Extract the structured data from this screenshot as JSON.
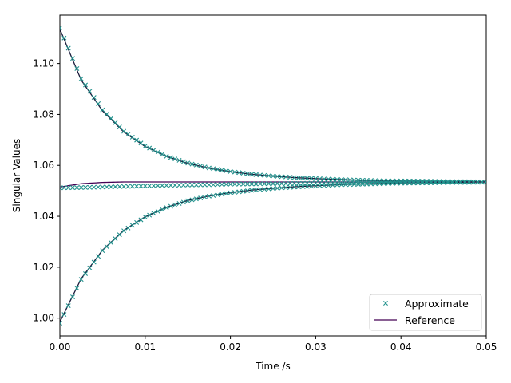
{
  "chart_data": {
    "type": "line",
    "title": "",
    "xlabel": "Time /s",
    "ylabel": "Singular Values",
    "xlim": [
      0.0,
      0.05
    ],
    "ylim": [
      0.993,
      1.119
    ],
    "xticks": [
      0.0,
      0.01,
      0.02,
      0.03,
      0.04,
      0.05
    ],
    "xtick_labels": [
      "0.00",
      "0.01",
      "0.02",
      "0.03",
      "0.04",
      "0.05"
    ],
    "yticks": [
      1.0,
      1.02,
      1.04,
      1.06,
      1.08,
      1.1
    ],
    "ytick_labels": [
      "1.00",
      "1.02",
      "1.04",
      "1.06",
      "1.08",
      "1.10"
    ],
    "grid": false,
    "legend": {
      "placement": "lower-right",
      "entries": [
        {
          "label": "Approximate",
          "marker": "x",
          "color": "#21918c"
        },
        {
          "label": "Reference",
          "marker": "line",
          "color": "#440154"
        }
      ]
    },
    "colors": {
      "approximate": "#21918c",
      "reference": "#440154",
      "reference_dark": "#1a1a3a"
    },
    "x": [
      0.0,
      0.0025,
      0.005,
      0.0075,
      0.01,
      0.0125,
      0.015,
      0.0175,
      0.02,
      0.0225,
      0.025,
      0.0275,
      0.03,
      0.0325,
      0.035,
      0.0375,
      0.04,
      0.0425,
      0.045,
      0.0475,
      0.05
    ],
    "series": [
      {
        "name": "Reference",
        "curve": "upper",
        "values": [
          1.1135,
          1.0935,
          1.0814,
          1.0731,
          1.0674,
          1.0635,
          1.0608,
          1.0589,
          1.0575,
          1.0565,
          1.0558,
          1.0552,
          1.0548,
          1.0545,
          1.0542,
          1.054,
          1.0539,
          1.0538,
          1.0537,
          1.0536,
          1.0535
        ]
      },
      {
        "name": "Reference",
        "curve": "middle",
        "values": [
          1.0515,
          1.0528,
          1.0533,
          1.0535,
          1.0535,
          1.0535,
          1.0535,
          1.0535,
          1.0535,
          1.0535,
          1.0535,
          1.0535,
          1.0535,
          1.0535,
          1.0535,
          1.0535,
          1.0535,
          1.0535,
          1.0535,
          1.0535,
          1.0535
        ]
      },
      {
        "name": "Reference",
        "curve": "lower",
        "values": [
          0.9985,
          1.0155,
          1.0267,
          1.0345,
          1.0398,
          1.0435,
          1.0462,
          1.048,
          1.0493,
          1.0503,
          1.051,
          1.0516,
          1.052,
          1.0524,
          1.0527,
          1.0529,
          1.0531,
          1.0532,
          1.0533,
          1.0534,
          1.0535
        ]
      },
      {
        "name": "Approximate",
        "curve": "upper",
        "values": [
          1.114,
          1.094,
          1.0818,
          1.0734,
          1.0676,
          1.0636,
          1.0609,
          1.059,
          1.0576,
          1.0565,
          1.0558,
          1.0552,
          1.0548,
          1.0545,
          1.0542,
          1.054,
          1.0539,
          1.0538,
          1.0537,
          1.0536,
          1.0535
        ]
      },
      {
        "name": "Approximate",
        "curve": "middle",
        "values": [
          1.0512,
          1.0513,
          1.0515,
          1.0517,
          1.0519,
          1.0521,
          1.0523,
          1.0524,
          1.0526,
          1.0527,
          1.0528,
          1.0529,
          1.053,
          1.0531,
          1.0532,
          1.0532,
          1.0533,
          1.0533,
          1.0534,
          1.0534,
          1.0535
        ]
      },
      {
        "name": "Approximate",
        "curve": "lower",
        "values": [
          0.998,
          1.0152,
          1.0265,
          1.0343,
          1.0397,
          1.0434,
          1.0461,
          1.0479,
          1.0492,
          1.0502,
          1.0509,
          1.0515,
          1.0519,
          1.0523,
          1.0526,
          1.0528,
          1.053,
          1.0531,
          1.0532,
          1.0533,
          1.0534
        ]
      }
    ]
  }
}
